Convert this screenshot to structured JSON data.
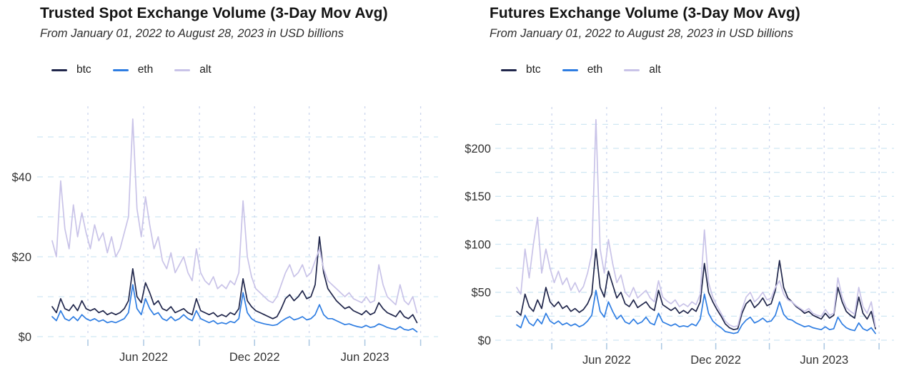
{
  "page": {
    "background": "#ffffff"
  },
  "chart_data": [
    {
      "type": "line",
      "title": "Trusted Spot Exchange Volume (3-Day Mov Avg)",
      "subtitle": "From January 01, 2022 to August 28, 2023 in USD billions",
      "x_start": "2022-01-01",
      "x_end": "2023-08-28",
      "x_unit": "days",
      "sample_interval_days": 7,
      "currency_prefix": "$",
      "ylim": [
        0,
        56
      ],
      "grid": "dashed",
      "legend_position": "top-left",
      "y_tick_labels": [
        0,
        20,
        40
      ],
      "y_gridlines": [
        0,
        10,
        20,
        30,
        40,
        50
      ],
      "x_gridline_days": [
        59,
        151,
        243,
        334,
        424,
        516,
        608
      ],
      "x_tick_labels": [
        {
          "label": "Jun 2022",
          "day": 151
        },
        {
          "label": "Dec 2022",
          "day": 334
        },
        {
          "label": "Jun 2023",
          "day": 516
        }
      ],
      "series": [
        {
          "name": "btc",
          "color": "#20264b",
          "values": [
            7.5,
            6,
            9.5,
            7,
            6.5,
            8,
            6.5,
            9,
            7,
            6.5,
            7,
            6,
            6.5,
            5.5,
            6,
            5.5,
            6,
            7,
            9,
            17,
            10,
            8.5,
            13.5,
            11,
            8,
            9,
            7,
            6.5,
            7.5,
            6,
            6.5,
            7,
            6,
            5.5,
            9.5,
            6.5,
            6,
            5.5,
            6,
            5,
            5.5,
            5,
            6,
            5.5,
            7,
            14.5,
            9,
            7.5,
            6.5,
            6,
            5.5,
            5,
            4.5,
            5,
            7,
            9.5,
            10.5,
            9,
            10,
            11.5,
            9.5,
            10,
            13,
            25,
            16,
            12,
            10.5,
            9,
            8,
            7,
            7.5,
            6.5,
            6,
            5.5,
            6.5,
            5.5,
            6,
            8.5,
            7,
            6,
            5.5,
            5,
            6.5,
            5,
            4.5,
            5.5,
            3.5
          ]
        },
        {
          "name": "eth",
          "color": "#2e7de2",
          "values": [
            5,
            4,
            6.5,
            4.5,
            4,
            5,
            4,
            5.5,
            4.5,
            4,
            4.5,
            3.8,
            4.2,
            3.5,
            3.8,
            3.5,
            4,
            4.5,
            6,
            13,
            7,
            5.5,
            9.5,
            7,
            5.5,
            6,
            4.5,
            4,
            5,
            4,
            4.5,
            5.5,
            4.5,
            4,
            6.5,
            4.5,
            4,
            3.5,
            4,
            3.2,
            3.5,
            3.2,
            3.8,
            3.5,
            4.5,
            11,
            6,
            4.5,
            3.8,
            3.5,
            3.2,
            3,
            2.8,
            3,
            3.8,
            4.5,
            5,
            4.2,
            4.5,
            5,
            4.2,
            4.5,
            5.5,
            8,
            5.5,
            4.5,
            4.5,
            4,
            3.5,
            3,
            3.2,
            2.8,
            2.5,
            2.3,
            2.8,
            2.3,
            2.5,
            3.2,
            2.8,
            2.3,
            2,
            1.8,
            2.5,
            1.8,
            1.6,
            2,
            1.2
          ]
        },
        {
          "name": "alt",
          "color": "#c9c3e8",
          "values": [
            24,
            20,
            39,
            27,
            22,
            33,
            25,
            31,
            26,
            22,
            28,
            24,
            26,
            21,
            25,
            20,
            22,
            26,
            30,
            54.5,
            32,
            25,
            35,
            28,
            22,
            25,
            19,
            17,
            21,
            16,
            18,
            20,
            16,
            14,
            22,
            16,
            14,
            13,
            15,
            12,
            13,
            12,
            14,
            13,
            16,
            34,
            20,
            15,
            12,
            11,
            10,
            9,
            8.5,
            10,
            13,
            16,
            18,
            15,
            16,
            18,
            15,
            16,
            19,
            22,
            17,
            14,
            13,
            12,
            11,
            10,
            11,
            9.5,
            9,
            8.5,
            10,
            8.5,
            9,
            18,
            13,
            10,
            9,
            8,
            13,
            9,
            8,
            10,
            6
          ]
        }
      ]
    },
    {
      "type": "line",
      "title": "Futures Exchange Volume (3-Day Mov Avg)",
      "subtitle": "From January 01, 2022 to August 28, 2023 in USD billions",
      "x_start": "2022-01-01",
      "x_end": "2023-08-28",
      "x_unit": "days",
      "sample_interval_days": 7,
      "currency_prefix": "$",
      "ylim": [
        0,
        240
      ],
      "grid": "dashed",
      "legend_position": "top-left",
      "y_tick_labels": [
        0,
        50,
        100,
        150,
        200
      ],
      "y_gridlines": [
        0,
        25,
        50,
        75,
        100,
        125,
        150,
        175,
        200,
        225
      ],
      "x_gridline_days": [
        59,
        151,
        243,
        334,
        424,
        516,
        608
      ],
      "x_tick_labels": [
        {
          "label": "Jun 2022",
          "day": 151
        },
        {
          "label": "Dec 2022",
          "day": 334
        },
        {
          "label": "Jun 2023",
          "day": 516
        }
      ],
      "series": [
        {
          "name": "btc",
          "color": "#20264b",
          "values": [
            30,
            26,
            48,
            35,
            30,
            42,
            33,
            55,
            40,
            35,
            40,
            33,
            36,
            30,
            33,
            29,
            32,
            38,
            48,
            95,
            55,
            45,
            72,
            58,
            44,
            50,
            38,
            35,
            42,
            34,
            37,
            40,
            34,
            31,
            52,
            37,
            34,
            31,
            34,
            28,
            31,
            28,
            33,
            30,
            40,
            80,
            50,
            40,
            32,
            25,
            17,
            13,
            11,
            12,
            28,
            38,
            42,
            34,
            38,
            44,
            36,
            38,
            52,
            83,
            55,
            44,
            40,
            35,
            32,
            28,
            30,
            26,
            24,
            22,
            28,
            23,
            26,
            55,
            40,
            30,
            26,
            23,
            45,
            28,
            22,
            30,
            12
          ]
        },
        {
          "name": "eth",
          "color": "#2e7de2",
          "values": [
            16,
            13,
            26,
            18,
            15,
            22,
            17,
            28,
            20,
            17,
            20,
            16,
            18,
            15,
            17,
            14,
            16,
            20,
            26,
            52,
            30,
            24,
            40,
            30,
            22,
            26,
            19,
            17,
            22,
            17,
            19,
            24,
            18,
            16,
            28,
            19,
            17,
            15,
            17,
            14,
            15,
            14,
            17,
            15,
            22,
            48,
            28,
            20,
            16,
            13,
            9,
            8,
            7,
            8,
            16,
            21,
            24,
            18,
            20,
            23,
            19,
            20,
            26,
            40,
            27,
            22,
            21,
            18,
            16,
            14,
            15,
            13,
            12,
            11,
            14,
            11,
            12,
            24,
            17,
            13,
            11,
            10,
            18,
            12,
            10,
            13,
            7
          ]
        },
        {
          "name": "alt",
          "color": "#c9c3e8",
          "values": [
            55,
            48,
            95,
            65,
            100,
            128,
            70,
            95,
            75,
            60,
            72,
            58,
            65,
            52,
            60,
            50,
            56,
            70,
            90,
            230,
            95,
            70,
            105,
            80,
            60,
            68,
            50,
            45,
            55,
            44,
            48,
            52,
            44,
            40,
            62,
            45,
            41,
            38,
            42,
            35,
            38,
            35,
            40,
            37,
            48,
            115,
            60,
            45,
            36,
            28,
            20,
            16,
            14,
            15,
            32,
            45,
            50,
            40,
            44,
            50,
            42,
            44,
            55,
            62,
            48,
            42,
            40,
            36,
            33,
            30,
            33,
            28,
            26,
            25,
            32,
            26,
            28,
            65,
            45,
            34,
            30,
            27,
            55,
            35,
            28,
            40,
            14
          ]
        }
      ]
    }
  ]
}
